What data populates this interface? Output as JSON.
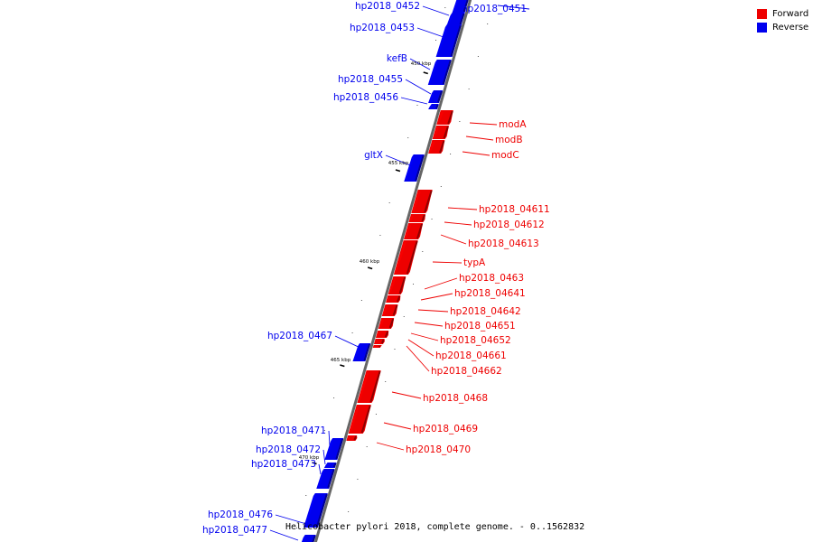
{
  "legend": {
    "forward_label": "Forward",
    "reverse_label": "Reverse"
  },
  "colors": {
    "forward": "#ee0000",
    "reverse": "#0000ee",
    "backbone": "#666666"
  },
  "caption": "Helicobacter pylori 2018, complete genome. - 0..1562832",
  "axis_labels": [
    "450 kbp",
    "455 kbp",
    "460 kbp",
    "465 kbp",
    "470 kbp"
  ],
  "genes": [
    {
      "name": "hp2018_0451",
      "strand": "reverse"
    },
    {
      "name": "hp2018_0452",
      "strand": "reverse"
    },
    {
      "name": "hp2018_0453",
      "strand": "reverse"
    },
    {
      "name": "kefB",
      "strand": "reverse"
    },
    {
      "name": "hp2018_0455",
      "strand": "reverse"
    },
    {
      "name": "hp2018_0456",
      "strand": "reverse"
    },
    {
      "name": "modA",
      "strand": "forward"
    },
    {
      "name": "modB",
      "strand": "forward"
    },
    {
      "name": "modC",
      "strand": "forward"
    },
    {
      "name": "gltX",
      "strand": "reverse"
    },
    {
      "name": "hp2018_04611",
      "strand": "forward"
    },
    {
      "name": "hp2018_04612",
      "strand": "forward"
    },
    {
      "name": "hp2018_04613",
      "strand": "forward"
    },
    {
      "name": "typA",
      "strand": "forward"
    },
    {
      "name": "hp2018_0463",
      "strand": "forward"
    },
    {
      "name": "hp2018_04641",
      "strand": "forward"
    },
    {
      "name": "hp2018_04642",
      "strand": "forward"
    },
    {
      "name": "hp2018_04651",
      "strand": "forward"
    },
    {
      "name": "hp2018_04652",
      "strand": "forward"
    },
    {
      "name": "hp2018_04661",
      "strand": "forward"
    },
    {
      "name": "hp2018_04662",
      "strand": "forward"
    },
    {
      "name": "hp2018_0467",
      "strand": "reverse"
    },
    {
      "name": "hp2018_0468",
      "strand": "forward"
    },
    {
      "name": "hp2018_0469",
      "strand": "forward"
    },
    {
      "name": "hp2018_0470",
      "strand": "forward"
    },
    {
      "name": "hp2018_0471",
      "strand": "reverse"
    },
    {
      "name": "hp2018_0472",
      "strand": "reverse"
    },
    {
      "name": "hp2018_0473",
      "strand": "reverse"
    },
    {
      "name": "hp2018_0476",
      "strand": "reverse"
    },
    {
      "name": "hp2018_0477",
      "strand": "reverse"
    }
  ]
}
